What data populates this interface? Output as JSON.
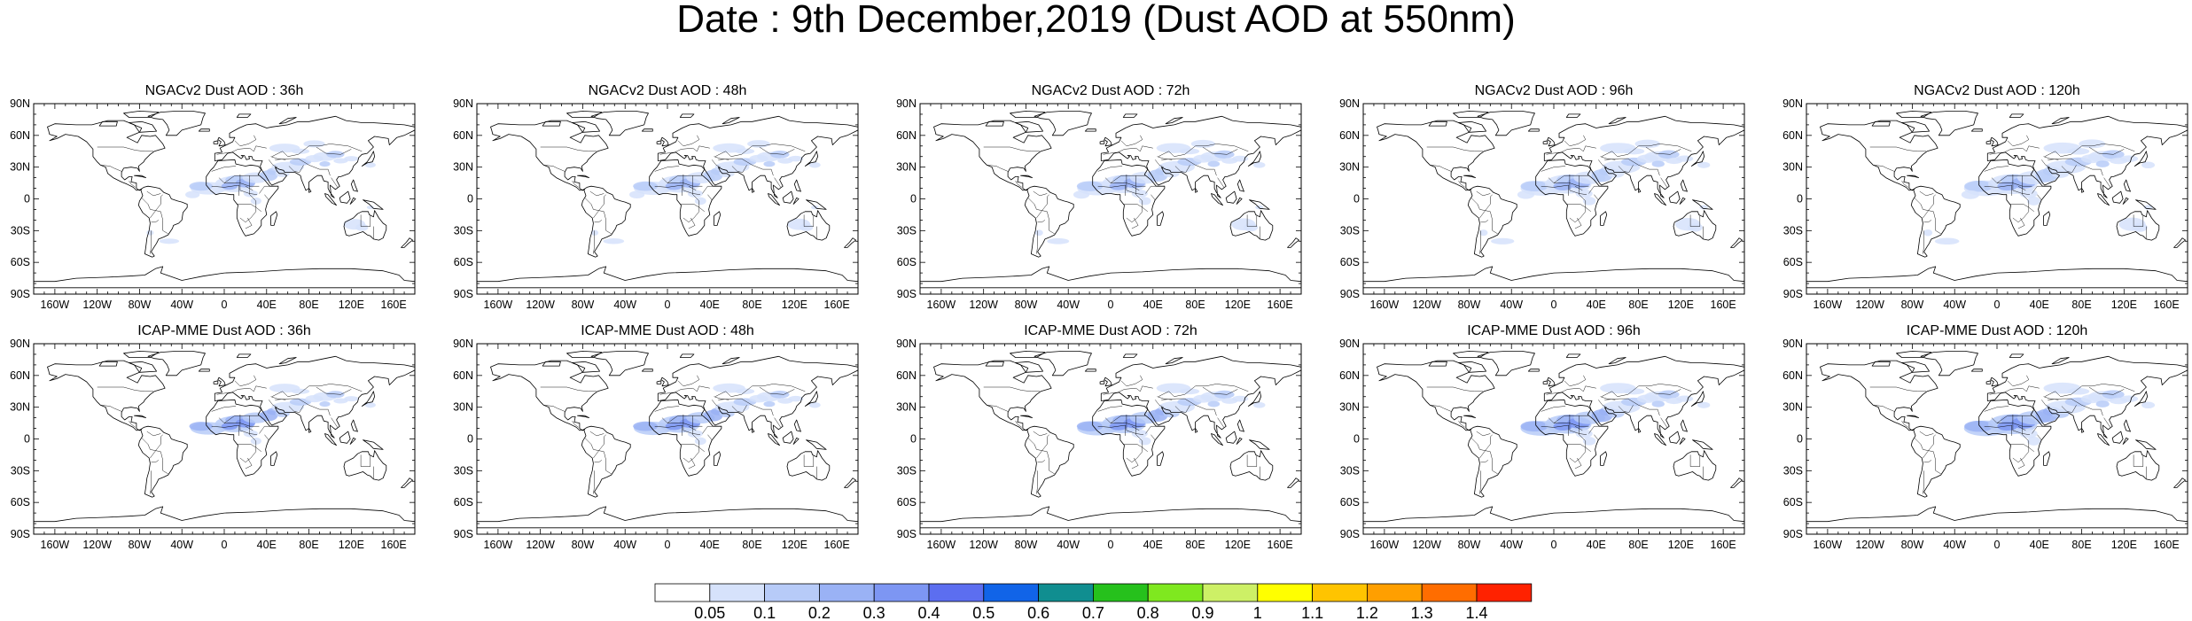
{
  "title": "Date : 9th December,2019 (Dust AOD at 550nm)",
  "panels": [
    {
      "title": "NGACv2 Dust AOD : 36h"
    },
    {
      "title": "NGACv2 Dust AOD : 48h"
    },
    {
      "title": "NGACv2 Dust AOD : 72h"
    },
    {
      "title": "NGACv2 Dust AOD : 96h"
    },
    {
      "title": "NGACv2 Dust AOD : 120h"
    },
    {
      "title": "ICAP-MME Dust AOD : 36h"
    },
    {
      "title": "ICAP-MME Dust AOD : 48h"
    },
    {
      "title": "ICAP-MME Dust AOD : 72h"
    },
    {
      "title": "ICAP-MME Dust AOD : 96h"
    },
    {
      "title": "ICAP-MME Dust AOD : 120h"
    }
  ],
  "lat_labels": [
    "90N",
    "60N",
    "30N",
    "0",
    "30S",
    "60S",
    "90S"
  ],
  "lon_labels": [
    "160W",
    "120W",
    "80W",
    "40W",
    "0",
    "40E",
    "80E",
    "120E",
    "160E"
  ],
  "colorbar": {
    "labels": [
      "0.05",
      "0.1",
      "0.2",
      "0.3",
      "0.4",
      "0.5",
      "0.6",
      "0.7",
      "0.8",
      "0.9",
      "1",
      "1.1",
      "1.2",
      "1.3",
      "1.4"
    ],
    "colors": [
      "#ffffff",
      "#d6e2fb",
      "#b7cbf8",
      "#9ab2f5",
      "#7d96f3",
      "#5c6ef0",
      "#1164e8",
      "#108e90",
      "#26c11c",
      "#7fe81f",
      "#cdf066",
      "#ffff00",
      "#ffc400",
      "#ff9f00",
      "#ff6d00",
      "#ff2200"
    ]
  }
}
